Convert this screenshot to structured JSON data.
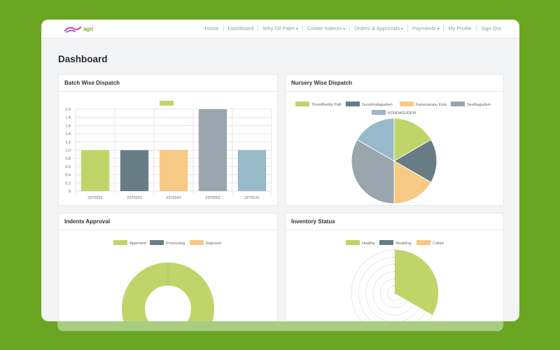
{
  "nav": {
    "logo_text": "agri",
    "items": [
      "Home",
      "Dashboard",
      "Why Oil Palm",
      "Create Indents",
      "Orders & Approvals",
      "Payments",
      "My Profile",
      "Sign Out"
    ]
  },
  "page_title": "Dashboard",
  "cards": {
    "batch": {
      "title": "Batch Wise Dispatch",
      "chart_data": {
        "type": "bar",
        "categories": [
          "2270231",
          "2270201",
          "2370241",
          "2370252",
          "2270131"
        ],
        "values": [
          1.0,
          1.0,
          1.0,
          2.0,
          1.0
        ],
        "colors": [
          "#bfd56a",
          "#687c86",
          "#f6c984",
          "#9aa6ad",
          "#97b9c9"
        ],
        "ylim": [
          0,
          2.0
        ],
        "yticks": [
          "0",
          "0.2",
          "0.4",
          "0.6",
          "0.8",
          "1.0",
          "1.2",
          "1.4",
          "1.6",
          "1.8",
          "2.0"
        ],
        "legend_color": "#bfd56a",
        "grid": true
      }
    },
    "nursery": {
      "title": "Nursery Wise Dispatch",
      "chart_data": {
        "type": "pie",
        "labels": [
          "TimmiReddy Palli",
          "Gurubhallagudem",
          "Kamavarapu Kota",
          "Seethagudem",
          "KONDAGUDEM"
        ],
        "values": [
          1,
          1,
          1,
          2,
          1
        ],
        "colors": [
          "#bfd56a",
          "#687c86",
          "#f6c984",
          "#9aa6ad",
          "#97b9c9"
        ]
      }
    },
    "indents": {
      "title": "Indents Approval",
      "chart_data": {
        "type": "doughnut",
        "labels": [
          "Approved",
          "Processing",
          "Rejected"
        ],
        "values": [
          1,
          0,
          0
        ],
        "colors": [
          "#bfd56a",
          "#687c86",
          "#f6c984"
        ]
      }
    },
    "inventory": {
      "title": "Inventory Status",
      "chart_data": {
        "type": "polarArea",
        "labels": [
          "Healthy",
          "Weakling",
          "Culled"
        ],
        "colors": [
          "#bfd56a",
          "#687c86",
          "#f6c984"
        ]
      }
    }
  }
}
